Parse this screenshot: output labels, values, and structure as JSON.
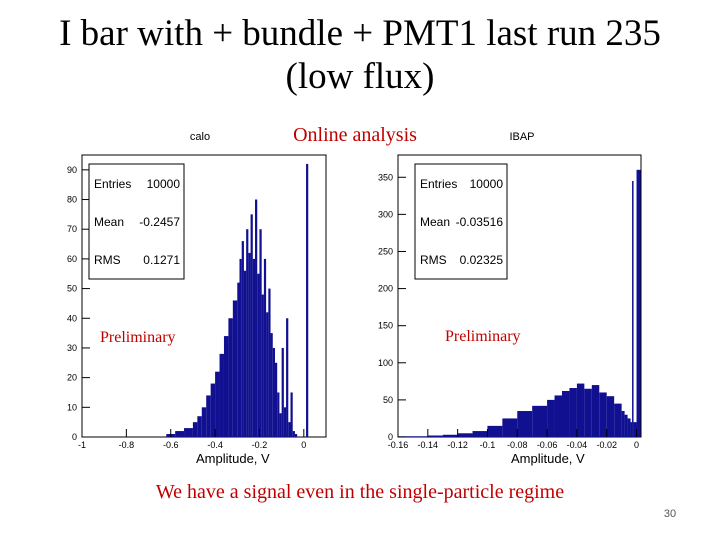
{
  "slide": {
    "title_line1": "I bar with + bundle + PMT1 last run 235",
    "title_line2": "(low flux)",
    "online_label": "Online analysis",
    "footer": "We have a signal even in the single-particle regime",
    "page_number": "30"
  },
  "colors": {
    "histogram": "#101090",
    "accent_text": "#c00000",
    "axis": "#000000"
  },
  "chart_data": [
    {
      "type": "histogram",
      "name_label": "calo",
      "xlabel": "Amplitude, V",
      "ylabel": "",
      "xlim": [
        -1.0,
        0.1
      ],
      "ylim": [
        0,
        95
      ],
      "x_ticks": [
        "-1",
        "-0.8",
        "-0.6",
        "-0.4",
        "-0.2",
        "0"
      ],
      "x_tick_values": [
        -1.0,
        -0.8,
        -0.6,
        -0.4,
        -0.2,
        0.0
      ],
      "y_ticks": [
        "0",
        "10",
        "20",
        "30",
        "40",
        "50",
        "60",
        "70",
        "80",
        "90"
      ],
      "y_tick_values": [
        0,
        10,
        20,
        30,
        40,
        50,
        60,
        70,
        80,
        90
      ],
      "stats": [
        {
          "label": "Entries",
          "value": "10000"
        },
        {
          "label": "Mean",
          "value": "-0.2457"
        },
        {
          "label": "RMS",
          "value": "0.1271"
        }
      ],
      "annotation": "Preliminary",
      "x": [
        -0.62,
        -0.58,
        -0.54,
        -0.5,
        -0.48,
        -0.46,
        -0.44,
        -0.42,
        -0.4,
        -0.38,
        -0.36,
        -0.34,
        -0.32,
        -0.3,
        -0.29,
        -0.28,
        -0.27,
        -0.26,
        -0.25,
        -0.24,
        -0.23,
        -0.22,
        -0.21,
        -0.2,
        -0.19,
        -0.18,
        -0.17,
        -0.16,
        -0.15,
        -0.14,
        -0.13,
        -0.12,
        -0.11,
        -0.1,
        -0.09,
        -0.08,
        -0.07,
        -0.06,
        -0.05,
        -0.04,
        -0.03,
        -0.02,
        -0.01,
        0.0,
        0.01,
        0.02
      ],
      "y": [
        1,
        2,
        3,
        5,
        7,
        10,
        14,
        18,
        22,
        28,
        34,
        40,
        46,
        52,
        60,
        66,
        56,
        70,
        62,
        75,
        60,
        80,
        55,
        70,
        48,
        60,
        42,
        50,
        35,
        30,
        25,
        15,
        8,
        30,
        10,
        40,
        5,
        15,
        2,
        1,
        0,
        0,
        0,
        0,
        92,
        0
      ]
    },
    {
      "type": "histogram",
      "name_label": "IBAP",
      "xlabel": "Amplitude, V",
      "ylabel": "",
      "xlim": [
        -0.16,
        0.003
      ],
      "ylim": [
        0,
        380
      ],
      "x_ticks": [
        "-0.16",
        "-0.14",
        "-0.12",
        "-0.1",
        "-0.08",
        "-0.06",
        "-0.04",
        "-0.02",
        "0"
      ],
      "x_tick_values": [
        -0.16,
        -0.14,
        -0.12,
        -0.1,
        -0.08,
        -0.06,
        -0.04,
        -0.02,
        0.0
      ],
      "y_ticks": [
        "0",
        "50",
        "100",
        "150",
        "200",
        "250",
        "300",
        "350"
      ],
      "y_tick_values": [
        0,
        50,
        100,
        150,
        200,
        250,
        300,
        350
      ],
      "stats": [
        {
          "label": "Entries",
          "value": "10000"
        },
        {
          "label": "Mean",
          "value": "-0.03516"
        },
        {
          "label": "RMS",
          "value": "0.02325"
        }
      ],
      "annotation": "Preliminary",
      "x": [
        -0.16,
        -0.15,
        -0.14,
        -0.13,
        -0.12,
        -0.11,
        -0.1,
        -0.09,
        -0.08,
        -0.07,
        -0.06,
        -0.055,
        -0.05,
        -0.045,
        -0.04,
        -0.035,
        -0.03,
        -0.025,
        -0.02,
        -0.015,
        -0.01,
        -0.008,
        -0.006,
        -0.004,
        -0.003,
        -0.002,
        0.0
      ],
      "y": [
        1,
        1,
        2,
        3,
        5,
        8,
        15,
        25,
        35,
        42,
        50,
        56,
        62,
        66,
        72,
        65,
        70,
        60,
        55,
        45,
        35,
        30,
        25,
        20,
        345,
        20,
        360
      ]
    }
  ]
}
